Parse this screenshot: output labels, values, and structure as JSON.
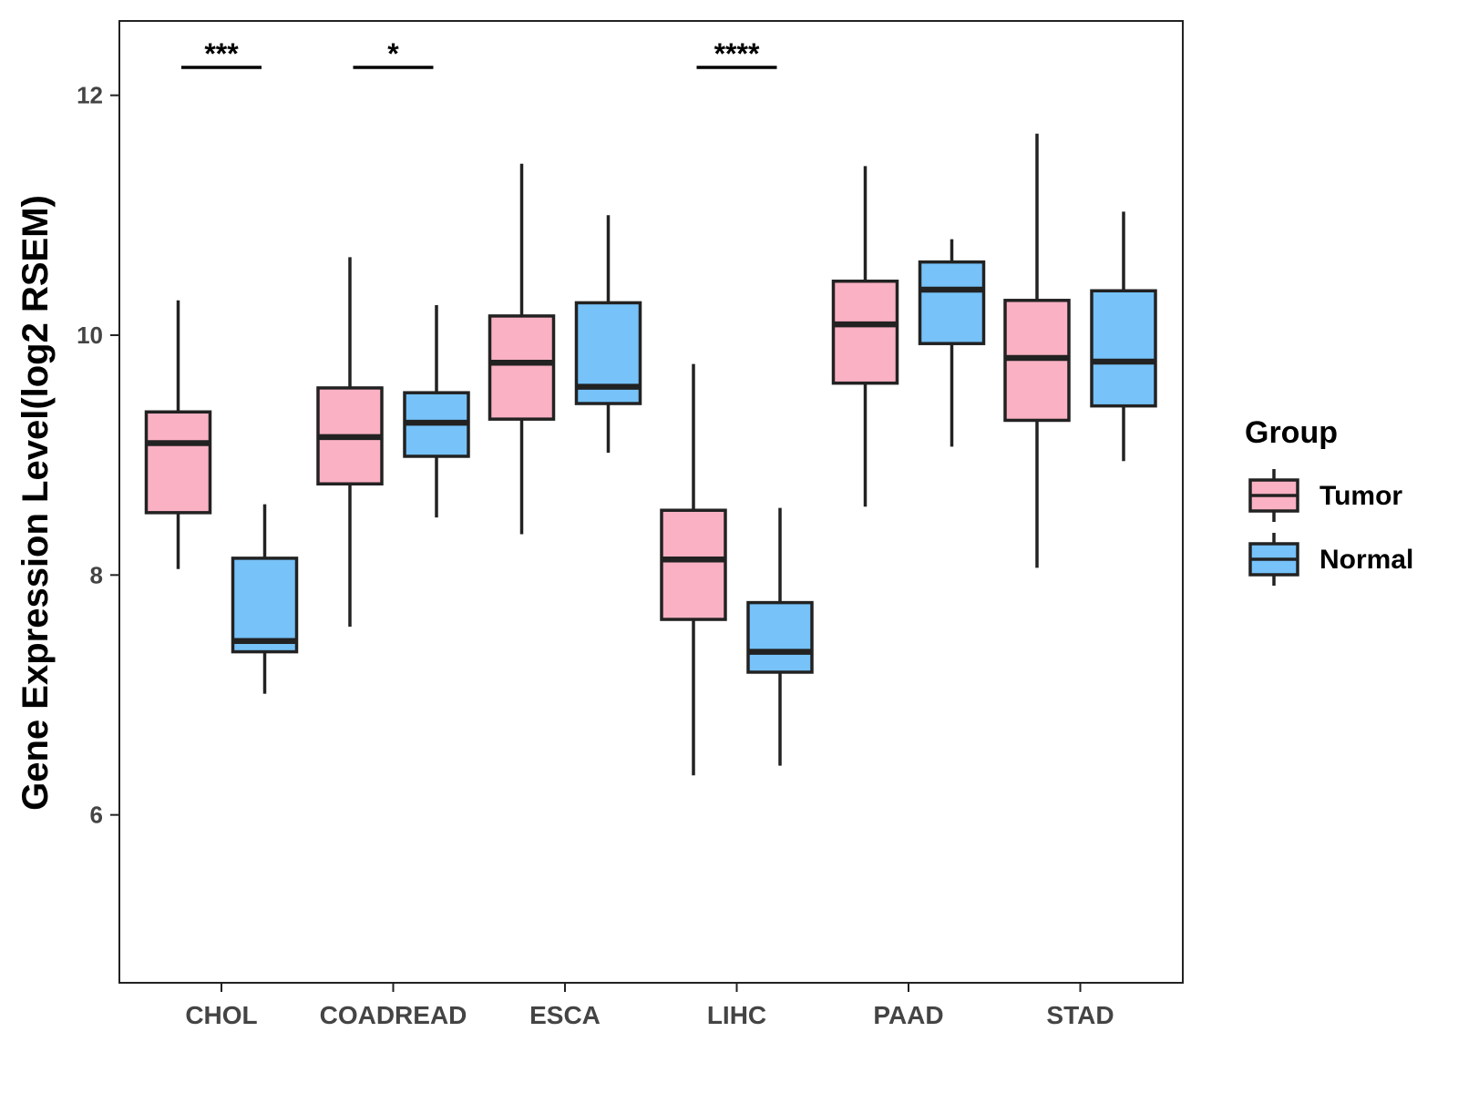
{
  "chart_data": {
    "type": "boxplot",
    "title": "",
    "xlabel": "",
    "ylabel": "Gene Expression Level(log2 RSEM)",
    "ylim": [
      4.6,
      12.62
    ],
    "yticks": [
      6,
      8,
      10,
      12
    ],
    "categories": [
      "CHOL",
      "COADREAD",
      "ESCA",
      "LIHC",
      "PAAD",
      "STAD"
    ],
    "legend": {
      "title": "Group",
      "position": "right",
      "entries": [
        {
          "name": "Tumor",
          "color": "#F9B1C3"
        },
        {
          "name": "Normal",
          "color": "#76C2F9"
        }
      ]
    },
    "series": [
      {
        "name": "Tumor",
        "color": "#F9B1C3",
        "boxes": [
          {
            "min": 8.05,
            "q1": 8.52,
            "median": 9.1,
            "q3": 9.36,
            "max": 10.29
          },
          {
            "min": 7.57,
            "q1": 8.76,
            "median": 9.15,
            "q3": 9.56,
            "max": 10.65
          },
          {
            "min": 8.34,
            "q1": 9.3,
            "median": 9.77,
            "q3": 10.16,
            "max": 11.43
          },
          {
            "min": 6.33,
            "q1": 7.63,
            "median": 8.13,
            "q3": 8.54,
            "max": 9.76
          },
          {
            "min": 8.57,
            "q1": 9.6,
            "median": 10.09,
            "q3": 10.45,
            "max": 11.41
          },
          {
            "min": 8.06,
            "q1": 9.29,
            "median": 9.81,
            "q3": 10.29,
            "max": 11.68
          }
        ]
      },
      {
        "name": "Normal",
        "color": "#76C2F9",
        "boxes": [
          {
            "min": 7.01,
            "q1": 7.36,
            "median": 7.45,
            "q3": 8.14,
            "max": 8.59
          },
          {
            "min": 8.48,
            "q1": 8.99,
            "median": 9.27,
            "q3": 9.52,
            "max": 10.25
          },
          {
            "min": 9.02,
            "q1": 9.43,
            "median": 9.57,
            "q3": 10.27,
            "max": 11.0
          },
          {
            "min": 6.41,
            "q1": 7.19,
            "median": 7.36,
            "q3": 7.77,
            "max": 8.56
          },
          {
            "min": 9.07,
            "q1": 9.93,
            "median": 10.38,
            "q3": 10.61,
            "max": 10.8
          },
          {
            "min": 8.95,
            "q1": 9.41,
            "median": 9.78,
            "q3": 10.37,
            "max": 11.03
          }
        ]
      }
    ],
    "significance": [
      {
        "category": "CHOL",
        "label": "***"
      },
      {
        "category": "COADREAD",
        "label": "*"
      },
      {
        "category": "LIHC",
        "label": "****"
      }
    ]
  }
}
